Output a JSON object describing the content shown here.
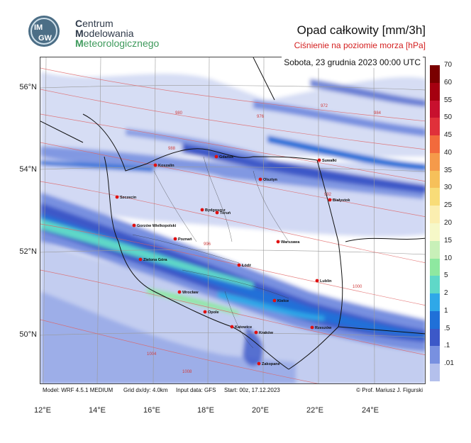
{
  "header": {
    "org_line_1_initial": "C",
    "org_line_1_rest": "entrum",
    "org_line_2_initial": "M",
    "org_line_2_rest": "odelowania",
    "org_line_3_initial": "M",
    "org_line_3_rest": "eteorologicznego",
    "logo_text": "IMGW"
  },
  "title": "Opad całkowity [mm/3h]",
  "subtitle": "Ciśnienie na poziomie morza [hPa]",
  "datetime": "Sobota, 23 grudnia 2023 00:00 UTC",
  "lat_labels": [
    "56°N",
    "54°N",
    "52°N",
    "50°N"
  ],
  "lon_labels": [
    "12°E",
    "14°E",
    "16°E",
    "18°E",
    "20°E",
    "22°E",
    "24°E"
  ],
  "colorbar": {
    "levels": [
      "70",
      "60",
      "55",
      "50",
      "45",
      "40",
      "35",
      "30",
      "25",
      "20",
      "15",
      "10",
      "5",
      "2",
      "1",
      ".5",
      ".1",
      ".01"
    ],
    "colors": [
      "#7a0000",
      "#a50010",
      "#c8102e",
      "#e0303a",
      "#f26a3c",
      "#f59a4a",
      "#f6c05a",
      "#f8dc78",
      "#fbeeb0",
      "#f6f8c8",
      "#c8f0b8",
      "#8ee8a0",
      "#5fd8c8",
      "#2fa8e8",
      "#2070d8",
      "#3c58c8",
      "#7890e0",
      "#b4c0ec"
    ]
  },
  "cities": [
    {
      "name": "Gdańsk"
    },
    {
      "name": "Koszalin"
    },
    {
      "name": "Suwałki"
    },
    {
      "name": "Olsztyn"
    },
    {
      "name": "Szczecin"
    },
    {
      "name": "Białystok"
    },
    {
      "name": "Bydgoszcz"
    },
    {
      "name": "Toruń"
    },
    {
      "name": "Gorzów Wielkopolski"
    },
    {
      "name": "Poznań"
    },
    {
      "name": "Warszawa"
    },
    {
      "name": "Zielona Góra"
    },
    {
      "name": "Łódź"
    },
    {
      "name": "Lublin"
    },
    {
      "name": "Wrocław"
    },
    {
      "name": "Kielce"
    },
    {
      "name": "Opole"
    },
    {
      "name": "Katowice"
    },
    {
      "name": "Kraków"
    },
    {
      "name": "Rzeszów"
    },
    {
      "name": "Zakopane"
    }
  ],
  "isobars": [
    "980",
    "976",
    "972",
    "984",
    "988",
    "992",
    "996",
    "1000",
    "1004",
    "1008"
  ],
  "footer": {
    "model": "Model: WRF 4.5.1 MEDIUM",
    "grid": "Grid dx/dy: 4.0km",
    "input": "Input data: GFS",
    "start": "Start: 00z, 17.12.2023",
    "credit": "© Prof. Mariusz J. Figurski"
  }
}
